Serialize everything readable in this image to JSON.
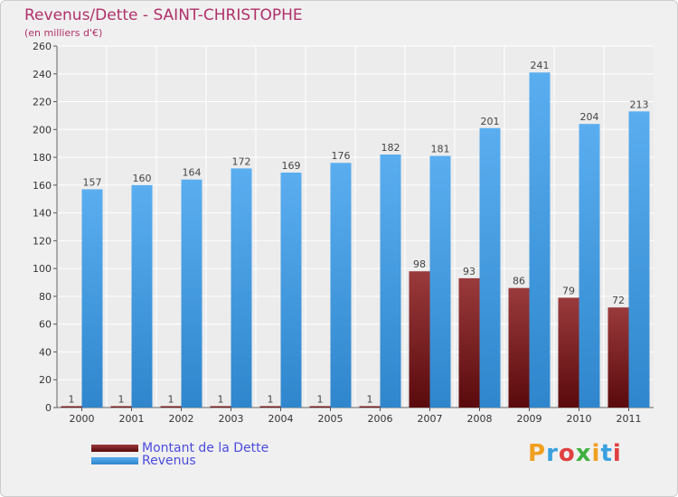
{
  "title": "Revenus/Dette - SAINT-CHRISTOPHE",
  "subtitle": "(en milliers d'€)",
  "logo_text": "Proxiti",
  "colors": {
    "title": "#b0306a",
    "debt_top": "#9a3a3c",
    "debt_bottom": "#5a0a0c",
    "revenue_top": "#5aaef0",
    "revenue_bottom": "#2f86cc",
    "legend_text": "#4b4bdc"
  },
  "legend": [
    {
      "label": "Montant de la Dette",
      "series": 0
    },
    {
      "label": "Revenus",
      "series": 1
    }
  ],
  "chart_data": {
    "type": "bar",
    "categories": [
      "2000",
      "2001",
      "2002",
      "2003",
      "2004",
      "2005",
      "2006",
      "2007",
      "2008",
      "2009",
      "2010",
      "2011"
    ],
    "series": [
      {
        "name": "Montant de la Dette",
        "values": [
          1,
          1,
          1,
          1,
          1,
          1,
          1,
          98,
          93,
          86,
          79,
          72
        ]
      },
      {
        "name": "Revenus",
        "values": [
          157,
          160,
          164,
          172,
          169,
          176,
          182,
          181,
          201,
          241,
          204,
          213
        ]
      }
    ],
    "ylim": [
      0,
      260
    ],
    "yticks": [
      0,
      20,
      40,
      60,
      80,
      100,
      120,
      140,
      160,
      180,
      200,
      220,
      240,
      260
    ],
    "grid": true,
    "legend_position": "bottom-left"
  }
}
